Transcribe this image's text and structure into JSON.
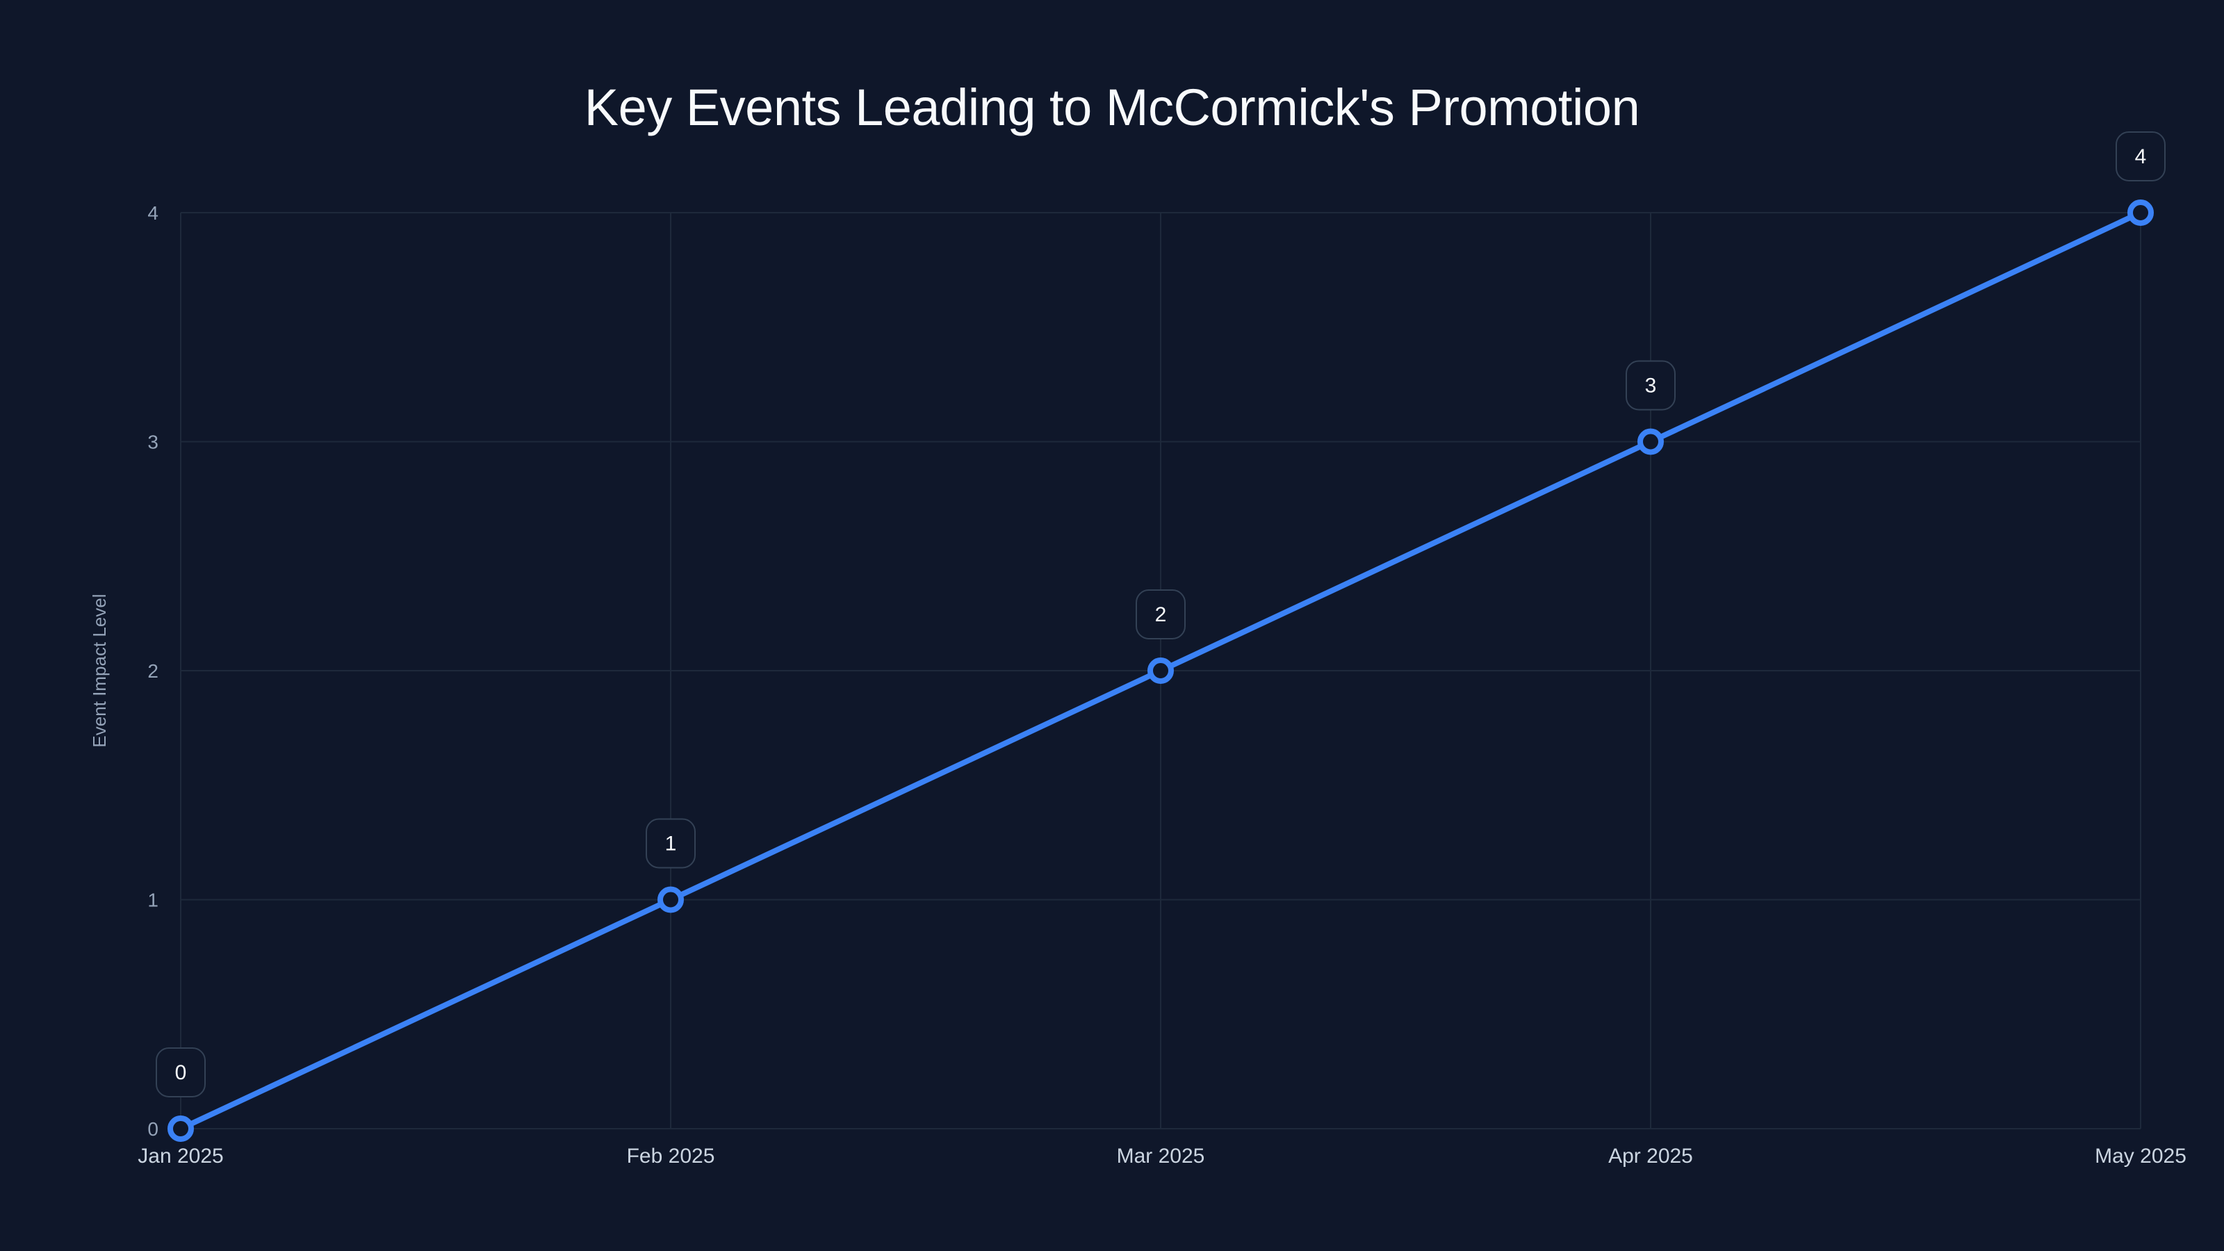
{
  "chart_data": {
    "type": "line",
    "title": "Key Events Leading to McCormick's Promotion",
    "xlabel": "",
    "ylabel": "Event Impact Level",
    "categories": [
      "Jan 2025",
      "Feb 2025",
      "Mar 2025",
      "Apr 2025",
      "May 2025"
    ],
    "series": [
      {
        "name": "Event Impact Level",
        "values": [
          0,
          1,
          2,
          3,
          4
        ],
        "color": "#3b82f6"
      }
    ],
    "data_labels": [
      "0",
      "1",
      "2",
      "3",
      "4"
    ],
    "ylim": [
      0,
      4
    ],
    "yticks": [
      "0",
      "1",
      "2",
      "3",
      "4"
    ],
    "grid": true,
    "legend": "none"
  },
  "colors": {
    "background": "#0f172a",
    "line": "#3b82f6",
    "grid": "#1e293b",
    "title": "#f8fafc",
    "tick_y": "#94a3b8",
    "tick_x": "#cbd5e1",
    "label_border": "#334155",
    "label_text": "#f8fafc"
  }
}
